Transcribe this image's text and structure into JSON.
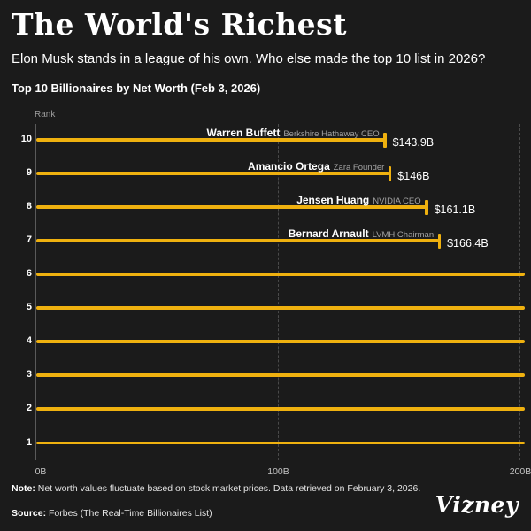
{
  "colors": {
    "background": "#1b1b1b",
    "accent_gold": "#EFB10F",
    "text_primary": "#ffffff",
    "text_secondary": "#9d9d9d"
  },
  "header": {
    "title": "The World's Richest",
    "subtitle": "Elon Musk stands in a league of his own. Who else made the top 10 list in 2026?"
  },
  "chart_data": {
    "type": "bar",
    "orientation": "horizontal",
    "title": "Top 10 Billionaires by Net Worth (Feb 3, 2026)",
    "rank_axis_label": "Rank",
    "value_unit": "USD billions",
    "xlim": [
      0,
      200
    ],
    "x_ticks": [
      {
        "label": "0B",
        "value": 0
      },
      {
        "label": "100B",
        "value": 100
      },
      {
        "label": "200B",
        "value": 200
      }
    ],
    "grid": "vertical-dashed",
    "bars": [
      {
        "rank": 10,
        "person": "Warren Buffett",
        "role": "Berkshire Hathaway CEO",
        "value": 143.9,
        "value_label": "$143.9B",
        "clipped": false
      },
      {
        "rank": 9,
        "person": "Amancio Ortega",
        "role": "Zara Founder",
        "value": 146,
        "value_label": "$146B",
        "clipped": false
      },
      {
        "rank": 8,
        "person": "Jensen Huang",
        "role": "NVIDIA CEO",
        "value": 161.1,
        "value_label": "$161.1B",
        "clipped": false
      },
      {
        "rank": 7,
        "person": "Bernard Arnault",
        "role": "LVMH Chairman",
        "value": 166.4,
        "value_label": "$166.4B",
        "clipped": false
      },
      {
        "rank": 6,
        "person": null,
        "role": null,
        "value": null,
        "value_label": null,
        "clipped": true
      },
      {
        "rank": 5,
        "person": null,
        "role": null,
        "value": null,
        "value_label": null,
        "clipped": true
      },
      {
        "rank": 4,
        "person": null,
        "role": null,
        "value": null,
        "value_label": null,
        "clipped": true
      },
      {
        "rank": 3,
        "person": null,
        "role": null,
        "value": null,
        "value_label": null,
        "clipped": true
      },
      {
        "rank": 2,
        "person": null,
        "role": null,
        "value": null,
        "value_label": null,
        "clipped": true
      },
      {
        "rank": 1,
        "person": null,
        "role": null,
        "value": null,
        "value_label": null,
        "clipped": true
      }
    ]
  },
  "footer": {
    "note_label": "Note:",
    "note_text": " Net worth values fluctuate based on stock market prices. Data retrieved on February 3, 2026.",
    "source_label": "Source:",
    "source_text": " Forbes (The Real-Time Billionaires List)",
    "logo": "Vizney"
  }
}
